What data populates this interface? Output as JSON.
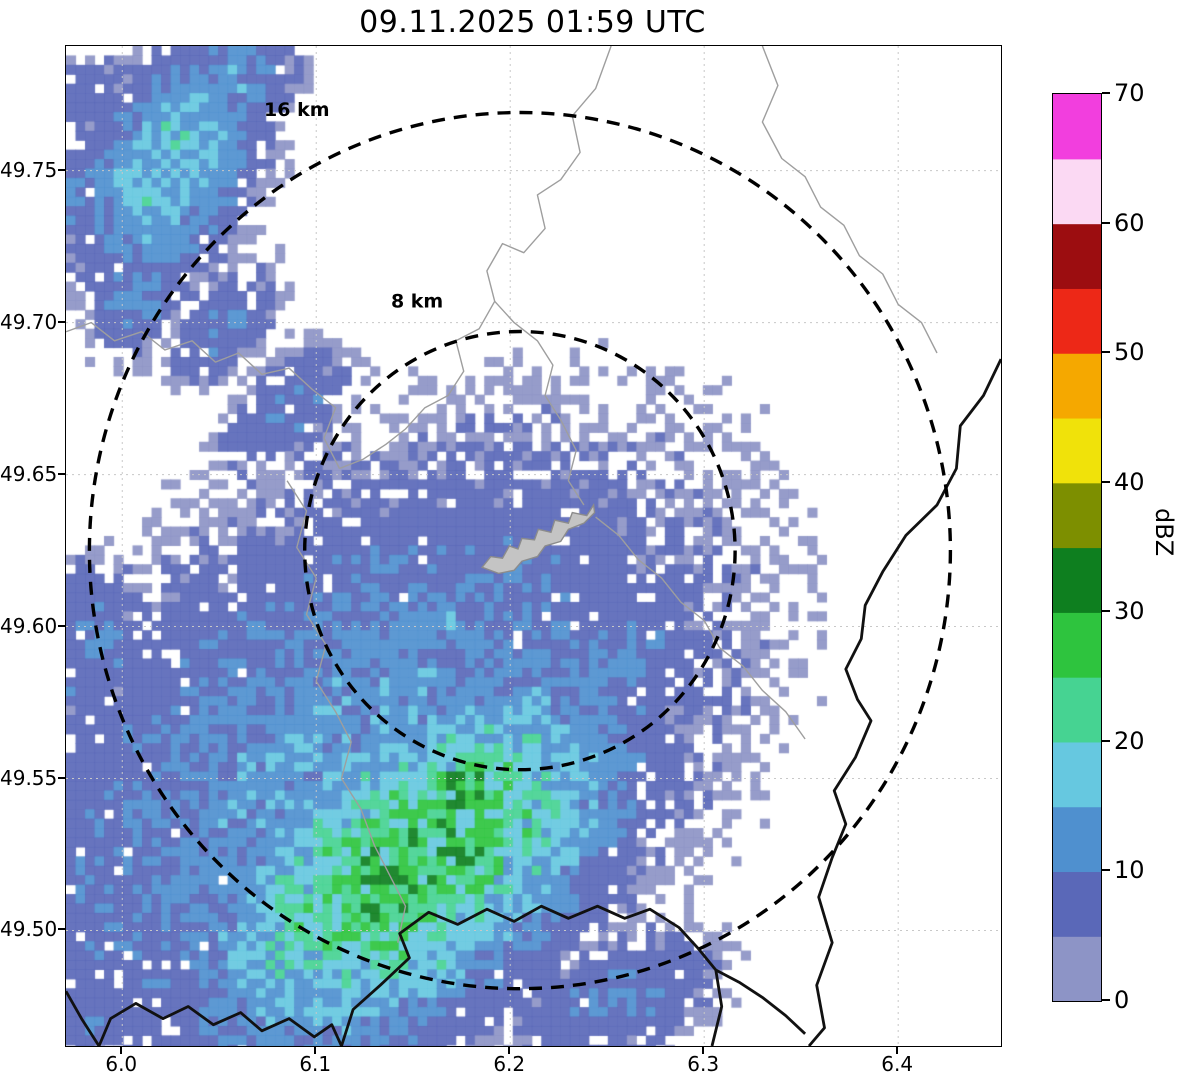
{
  "chart_data": {
    "type": "heatmap",
    "title": "09.11.2025 01:59 UTC",
    "x_axis": {
      "range": [
        5.971,
        6.453
      ],
      "tick_values": [
        6.0,
        6.1,
        6.2,
        6.3,
        6.4
      ],
      "tick_labels": [
        "6.0",
        "6.1",
        "6.2",
        "6.3",
        "6.4"
      ]
    },
    "y_axis": {
      "range": [
        49.462,
        49.791
      ],
      "tick_values": [
        49.5,
        49.55,
        49.6,
        49.65,
        49.7,
        49.75
      ],
      "tick_labels": [
        "49.50",
        "49.55",
        "49.60",
        "49.65",
        "49.70",
        "49.75"
      ]
    },
    "colorbar": {
      "label": "dBZ",
      "range": [
        0,
        70
      ],
      "level_step": 5,
      "tick_values": [
        0,
        10,
        20,
        30,
        40,
        50,
        60,
        70
      ],
      "tick_labels": [
        "0",
        "10",
        "20",
        "30",
        "40",
        "50",
        "60",
        "70"
      ],
      "colors": [
        "#8d94c6",
        "#5a68b8",
        "#4f90cf",
        "#66c8e0",
        "#46d392",
        "#2ec43e",
        "#0e7f1f",
        "#7d8f00",
        "#f0e20a",
        "#f5a800",
        "#ed2817",
        "#9c0d10",
        "#fbd9f3",
        "#f23ede"
      ]
    },
    "colors": {
      "grid": "#c8c8c8",
      "boundary": "#9e9e9e",
      "border": "#111111",
      "urban_fill": "#c4c4c4",
      "urban_stroke": "#8c8c8c",
      "ring": "#000000"
    },
    "radar_site": {
      "lon": 6.205,
      "lat": 49.625
    },
    "range_rings": [
      {
        "radius_km": 8,
        "label": "8 km",
        "label_lon": 6.152,
        "label_lat": 49.705
      },
      {
        "radius_km": 16,
        "label": "16 km",
        "label_lon": 6.09,
        "label_lat": 49.768
      }
    ],
    "precip_blobs": [
      {
        "c": [
          6.025,
          49.752
        ],
        "sx": 5.5,
        "sy": 3.2,
        "rot": 62,
        "peak": 20
      },
      {
        "c": [
          6.053,
          49.778
        ],
        "sx": 3.5,
        "sy": 2.2,
        "rot": 40,
        "peak": 16
      },
      {
        "c": [
          6.008,
          49.712
        ],
        "sx": 3.0,
        "sy": 2.2,
        "rot": 70,
        "peak": 13
      },
      {
        "c": [
          6.052,
          49.7
        ],
        "sx": 3.2,
        "sy": 1.8,
        "rot": 45,
        "peak": 11
      },
      {
        "c": [
          5.978,
          49.742
        ],
        "sx": 2.5,
        "sy": 3.0,
        "rot": 85,
        "peak": 11
      },
      {
        "c": [
          5.985,
          49.775
        ],
        "sx": 2.5,
        "sy": 2.0,
        "rot": 30,
        "peak": 9
      },
      {
        "c": [
          6.085,
          49.672
        ],
        "sx": 3.5,
        "sy": 2.0,
        "rot": 45,
        "peak": 11
      },
      {
        "c": [
          6.115,
          49.552
        ],
        "sx": 17.0,
        "sy": 10.5,
        "rot": 35,
        "peak": 15
      },
      {
        "c": [
          6.15,
          49.522
        ],
        "sx": 10.0,
        "sy": 5.5,
        "rot": 38,
        "peak": 30
      },
      {
        "c": [
          6.138,
          49.512
        ],
        "sx": 3.5,
        "sy": 2.2,
        "rot": 38,
        "peak": 36
      },
      {
        "c": [
          6.175,
          49.545
        ],
        "sx": 2.5,
        "sy": 1.8,
        "rot": 38,
        "peak": 33
      },
      {
        "c": [
          6.245,
          49.582
        ],
        "sx": 5.5,
        "sy": 2.6,
        "rot": 40,
        "peak": 13
      },
      {
        "c": [
          6.165,
          49.602
        ],
        "sx": 5.5,
        "sy": 2.2,
        "rot": 15,
        "peak": 14
      },
      {
        "c": [
          6.105,
          49.618
        ],
        "sx": 2.5,
        "sy": 1.5,
        "rot": 20,
        "peak": 10
      },
      {
        "c": [
          6.255,
          49.478
        ],
        "sx": 4.5,
        "sy": 2.5,
        "rot": 20,
        "peak": 12
      },
      {
        "c": [
          5.972,
          49.595
        ],
        "sx": 3.5,
        "sy": 4.0,
        "rot": 70,
        "peak": 12
      },
      {
        "c": [
          5.99,
          49.47
        ],
        "sx": 3.0,
        "sy": 2.0,
        "rot": 0,
        "peak": 10
      }
    ],
    "gray_boundaries": [
      [
        [
          6.252,
          49.791
        ],
        [
          6.244,
          49.777
        ],
        [
          6.232,
          49.768
        ],
        [
          6.236,
          49.756
        ],
        [
          6.226,
          49.747
        ],
        [
          6.214,
          49.742
        ],
        [
          6.218,
          49.731
        ],
        [
          6.207,
          49.723
        ],
        [
          6.196,
          49.726
        ],
        [
          6.188,
          49.717
        ],
        [
          6.192,
          49.707
        ],
        [
          6.184,
          49.698
        ],
        [
          6.172,
          49.694
        ],
        [
          6.176,
          49.684
        ],
        [
          6.168,
          49.676
        ],
        [
          6.156,
          49.672
        ],
        [
          6.146,
          49.665
        ],
        [
          6.136,
          49.66
        ],
        [
          6.124,
          49.655
        ],
        [
          6.112,
          49.652
        ]
      ],
      [
        [
          6.192,
          49.707
        ],
        [
          6.202,
          49.7
        ],
        [
          6.214,
          49.694
        ],
        [
          6.222,
          49.686
        ],
        [
          6.218,
          49.676
        ],
        [
          6.226,
          49.668
        ],
        [
          6.234,
          49.658
        ],
        [
          6.23,
          49.648
        ],
        [
          6.238,
          49.64
        ]
      ],
      [
        [
          5.971,
          49.697
        ],
        [
          5.984,
          49.7
        ],
        [
          5.996,
          49.694
        ],
        [
          6.01,
          49.697
        ],
        [
          6.022,
          49.691
        ],
        [
          6.036,
          49.694
        ],
        [
          6.048,
          49.687
        ],
        [
          6.06,
          49.69
        ],
        [
          6.072,
          49.683
        ],
        [
          6.086,
          49.685
        ],
        [
          6.098,
          49.678
        ],
        [
          6.11,
          49.672
        ],
        [
          6.104,
          49.662
        ],
        [
          6.112,
          49.652
        ]
      ],
      [
        [
          6.244,
          49.636
        ],
        [
          6.256,
          49.63
        ],
        [
          6.266,
          49.622
        ],
        [
          6.278,
          49.616
        ],
        [
          6.288,
          49.608
        ],
        [
          6.3,
          49.602
        ],
        [
          6.308,
          49.593
        ],
        [
          6.32,
          49.587
        ],
        [
          6.33,
          49.579
        ],
        [
          6.342,
          49.572
        ],
        [
          6.352,
          49.563
        ]
      ],
      [
        [
          6.33,
          49.791
        ],
        [
          6.338,
          49.778
        ],
        [
          6.33,
          49.766
        ],
        [
          6.34,
          49.754
        ],
        [
          6.352,
          49.748
        ],
        [
          6.36,
          49.738
        ],
        [
          6.372,
          49.732
        ],
        [
          6.38,
          49.722
        ],
        [
          6.392,
          49.716
        ],
        [
          6.4,
          49.706
        ],
        [
          6.412,
          49.7
        ],
        [
          6.42,
          49.69
        ]
      ],
      [
        [
          6.085,
          49.648
        ],
        [
          6.095,
          49.638
        ],
        [
          6.09,
          49.626
        ],
        [
          6.1,
          49.616
        ],
        [
          6.095,
          49.604
        ],
        [
          6.105,
          49.594
        ],
        [
          6.1,
          49.582
        ],
        [
          6.11,
          49.572
        ],
        [
          6.118,
          49.562
        ],
        [
          6.113,
          49.55
        ],
        [
          6.123,
          49.54
        ],
        [
          6.13,
          49.528
        ],
        [
          6.138,
          49.518
        ],
        [
          6.146,
          49.508
        ],
        [
          6.142,
          49.496
        ]
      ]
    ],
    "black_borders": [
      [
        [
          6.453,
          49.688
        ],
        [
          6.444,
          49.676
        ],
        [
          6.432,
          49.666
        ],
        [
          6.43,
          49.652
        ],
        [
          6.42,
          49.64
        ],
        [
          6.404,
          49.63
        ],
        [
          6.392,
          49.618
        ],
        [
          6.383,
          49.607
        ],
        [
          6.381,
          49.596
        ],
        [
          6.373,
          49.586
        ],
        [
          6.379,
          49.576
        ],
        [
          6.386,
          49.569
        ],
        [
          6.378,
          49.557
        ],
        [
          6.367,
          49.546
        ],
        [
          6.373,
          49.535
        ],
        [
          6.366,
          49.524
        ],
        [
          6.359,
          49.511
        ],
        [
          6.366,
          49.496
        ],
        [
          6.358,
          49.482
        ],
        [
          6.362,
          49.468
        ],
        [
          6.354,
          49.462
        ]
      ],
      [
        [
          6.113,
          49.462
        ],
        [
          6.119,
          49.474
        ],
        [
          6.133,
          49.482
        ],
        [
          6.148,
          49.491
        ],
        [
          6.143,
          49.499
        ],
        [
          6.158,
          49.506
        ],
        [
          6.173,
          49.502
        ],
        [
          6.188,
          49.507
        ],
        [
          6.202,
          49.503
        ],
        [
          6.216,
          49.508
        ],
        [
          6.23,
          49.504
        ],
        [
          6.245,
          49.508
        ],
        [
          6.259,
          49.504
        ],
        [
          6.272,
          49.507
        ],
        [
          6.287,
          49.501
        ],
        [
          6.297,
          49.494
        ],
        [
          6.306,
          49.487
        ],
        [
          6.309,
          49.475
        ],
        [
          6.304,
          49.462
        ]
      ],
      [
        [
          5.971,
          49.48
        ],
        [
          5.979,
          49.471
        ],
        [
          5.988,
          49.462
        ],
        [
          5.994,
          49.471
        ],
        [
          6.007,
          49.476
        ],
        [
          6.021,
          49.471
        ],
        [
          6.034,
          49.475
        ],
        [
          6.047,
          49.469
        ],
        [
          6.061,
          49.473
        ],
        [
          6.072,
          49.467
        ],
        [
          6.086,
          49.471
        ],
        [
          6.099,
          49.465
        ],
        [
          6.108,
          49.469
        ],
        [
          6.113,
          49.462
        ]
      ],
      [
        [
          6.306,
          49.487
        ],
        [
          6.318,
          49.483
        ],
        [
          6.33,
          49.478
        ],
        [
          6.342,
          49.472
        ],
        [
          6.352,
          49.466
        ]
      ]
    ],
    "urban_area": [
      [
        6.1855,
        49.6195
      ],
      [
        6.19,
        49.623
      ],
      [
        6.196,
        49.6225
      ],
      [
        6.1995,
        49.6265
      ],
      [
        6.204,
        49.6255
      ],
      [
        6.206,
        49.629
      ],
      [
        6.2125,
        49.6285
      ],
      [
        6.2145,
        49.632
      ],
      [
        6.221,
        49.631
      ],
      [
        6.223,
        49.635
      ],
      [
        6.23,
        49.634
      ],
      [
        6.232,
        49.6375
      ],
      [
        6.2395,
        49.6365
      ],
      [
        6.243,
        49.64
      ],
      [
        6.2435,
        49.6375
      ],
      [
        6.238,
        49.634
      ],
      [
        6.23,
        49.632
      ],
      [
        6.226,
        49.628
      ],
      [
        6.218,
        49.6265
      ],
      [
        6.214,
        49.623
      ],
      [
        6.206,
        49.6215
      ],
      [
        6.202,
        49.6185
      ],
      [
        6.194,
        49.6175
      ],
      [
        6.1855,
        49.6195
      ]
    ]
  }
}
